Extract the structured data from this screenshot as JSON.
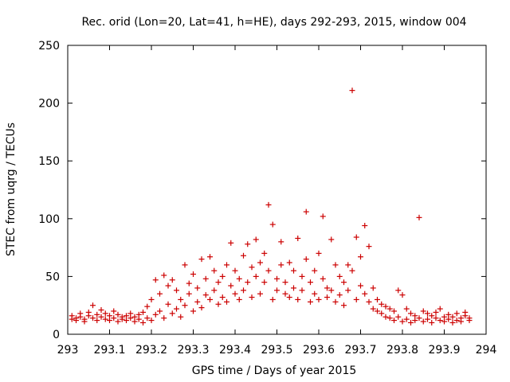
{
  "chart_data": {
    "type": "scatter",
    "title": "Rec. orid (Lon=20, Lat=41, h=HE), days 292-293, 2015, window 004",
    "xlabel": "GPS time / Days of year 2015",
    "ylabel": "STEC from uqrg / TECUs",
    "xlim": [
      293,
      294
    ],
    "ylim": [
      0,
      250
    ],
    "xticks": [
      "293",
      "293.1",
      "293.2",
      "293.3",
      "293.4",
      "293.5",
      "293.6",
      "293.7",
      "293.8",
      "293.9",
      "294"
    ],
    "yticks": [
      "0",
      "50",
      "100",
      "150",
      "200",
      "250"
    ],
    "grid": false,
    "marker": "plus",
    "color": "#cc0000",
    "series": [
      {
        "points": [
          [
            293.01,
            13
          ],
          [
            293.01,
            16
          ],
          [
            293.02,
            14
          ],
          [
            293.02,
            12
          ],
          [
            293.03,
            18
          ],
          [
            293.03,
            15
          ],
          [
            293.04,
            13
          ],
          [
            293.04,
            11
          ],
          [
            293.05,
            16
          ],
          [
            293.05,
            19
          ],
          [
            293.06,
            14
          ],
          [
            293.06,
            25
          ],
          [
            293.07,
            12
          ],
          [
            293.07,
            17
          ],
          [
            293.08,
            15
          ],
          [
            293.08,
            21
          ],
          [
            293.09,
            13
          ],
          [
            293.09,
            18
          ],
          [
            293.1,
            16
          ],
          [
            293.1,
            12
          ],
          [
            293.11,
            14
          ],
          [
            293.11,
            20
          ],
          [
            293.12,
            11
          ],
          [
            293.12,
            17
          ],
          [
            293.13,
            15
          ],
          [
            293.13,
            13
          ],
          [
            293.14,
            12
          ],
          [
            293.14,
            16
          ],
          [
            293.15,
            14
          ],
          [
            293.15,
            18
          ],
          [
            293.16,
            11
          ],
          [
            293.16,
            15
          ],
          [
            293.17,
            13
          ],
          [
            293.17,
            17
          ],
          [
            293.18,
            10
          ],
          [
            293.18,
            19
          ],
          [
            293.19,
            14
          ],
          [
            293.19,
            24
          ],
          [
            293.2,
            12
          ],
          [
            293.2,
            30
          ],
          [
            293.21,
            47
          ],
          [
            293.21,
            17
          ],
          [
            293.22,
            20
          ],
          [
            293.22,
            35
          ],
          [
            293.23,
            51
          ],
          [
            293.23,
            14
          ],
          [
            293.24,
            26
          ],
          [
            293.24,
            42
          ],
          [
            293.25,
            18
          ],
          [
            293.25,
            47
          ],
          [
            293.26,
            22
          ],
          [
            293.26,
            38
          ],
          [
            293.27,
            30
          ],
          [
            293.27,
            15
          ],
          [
            293.28,
            60
          ],
          [
            293.28,
            25
          ],
          [
            293.29,
            35
          ],
          [
            293.29,
            44
          ],
          [
            293.3,
            20
          ],
          [
            293.3,
            52
          ],
          [
            293.31,
            28
          ],
          [
            293.31,
            40
          ],
          [
            293.32,
            65
          ],
          [
            293.32,
            23
          ],
          [
            293.33,
            34
          ],
          [
            293.33,
            48
          ],
          [
            293.34,
            67
          ],
          [
            293.34,
            30
          ],
          [
            293.35,
            38
          ],
          [
            293.35,
            55
          ],
          [
            293.36,
            26
          ],
          [
            293.36,
            45
          ],
          [
            293.37,
            32
          ],
          [
            293.37,
            50
          ],
          [
            293.38,
            60
          ],
          [
            293.38,
            28
          ],
          [
            293.39,
            79
          ],
          [
            293.39,
            42
          ],
          [
            293.4,
            35
          ],
          [
            293.4,
            55
          ],
          [
            293.41,
            30
          ],
          [
            293.41,
            48
          ],
          [
            293.42,
            68
          ],
          [
            293.42,
            38
          ],
          [
            293.43,
            78
          ],
          [
            293.43,
            45
          ],
          [
            293.44,
            58
          ],
          [
            293.44,
            32
          ],
          [
            293.45,
            82
          ],
          [
            293.45,
            50
          ],
          [
            293.46,
            62
          ],
          [
            293.46,
            35
          ],
          [
            293.47,
            70
          ],
          [
            293.47,
            45
          ],
          [
            293.48,
            112
          ],
          [
            293.48,
            55
          ],
          [
            293.49,
            30
          ],
          [
            293.49,
            95
          ],
          [
            293.5,
            48
          ],
          [
            293.5,
            38
          ],
          [
            293.51,
            80
          ],
          [
            293.51,
            60
          ],
          [
            293.52,
            35
          ],
          [
            293.52,
            45
          ],
          [
            293.53,
            62
          ],
          [
            293.53,
            32
          ],
          [
            293.54,
            55
          ],
          [
            293.54,
            40
          ],
          [
            293.55,
            83
          ],
          [
            293.55,
            30
          ],
          [
            293.56,
            50
          ],
          [
            293.56,
            38
          ],
          [
            293.57,
            106
          ],
          [
            293.57,
            65
          ],
          [
            293.58,
            45
          ],
          [
            293.58,
            28
          ],
          [
            293.59,
            55
          ],
          [
            293.59,
            35
          ],
          [
            293.6,
            70
          ],
          [
            293.6,
            30
          ],
          [
            293.61,
            102
          ],
          [
            293.61,
            48
          ],
          [
            293.62,
            40
          ],
          [
            293.62,
            32
          ],
          [
            293.63,
            82
          ],
          [
            293.63,
            38
          ],
          [
            293.64,
            60
          ],
          [
            293.64,
            28
          ],
          [
            293.65,
            50
          ],
          [
            293.65,
            34
          ],
          [
            293.66,
            45
          ],
          [
            293.66,
            25
          ],
          [
            293.67,
            60
          ],
          [
            293.67,
            38
          ],
          [
            293.68,
            211
          ],
          [
            293.68,
            55
          ],
          [
            293.69,
            84
          ],
          [
            293.69,
            30
          ],
          [
            293.7,
            67
          ],
          [
            293.7,
            42
          ],
          [
            293.71,
            94
          ],
          [
            293.71,
            35
          ],
          [
            293.72,
            76
          ],
          [
            293.72,
            28
          ],
          [
            293.73,
            40
          ],
          [
            293.73,
            22
          ],
          [
            293.74,
            30
          ],
          [
            293.74,
            20
          ],
          [
            293.75,
            26
          ],
          [
            293.75,
            18
          ],
          [
            293.76,
            24
          ],
          [
            293.76,
            15
          ],
          [
            293.77,
            22
          ],
          [
            293.77,
            14
          ],
          [
            293.78,
            20
          ],
          [
            293.78,
            12
          ],
          [
            293.79,
            38
          ],
          [
            293.79,
            15
          ],
          [
            293.8,
            34
          ],
          [
            293.8,
            11
          ],
          [
            293.81,
            22
          ],
          [
            293.81,
            13
          ],
          [
            293.82,
            18
          ],
          [
            293.82,
            10
          ],
          [
            293.83,
            16
          ],
          [
            293.83,
            12
          ],
          [
            293.84,
            101
          ],
          [
            293.84,
            14
          ],
          [
            293.85,
            20
          ],
          [
            293.85,
            11
          ],
          [
            293.86,
            18
          ],
          [
            293.86,
            13
          ],
          [
            293.87,
            16
          ],
          [
            293.87,
            10
          ],
          [
            293.88,
            14
          ],
          [
            293.88,
            19
          ],
          [
            293.89,
            12
          ],
          [
            293.89,
            22
          ],
          [
            293.9,
            15
          ],
          [
            293.9,
            11
          ],
          [
            293.91,
            13
          ],
          [
            293.91,
            17
          ],
          [
            293.92,
            10
          ],
          [
            293.92,
            15
          ],
          [
            293.93,
            12
          ],
          [
            293.93,
            18
          ],
          [
            293.94,
            14
          ],
          [
            293.94,
            11
          ],
          [
            293.95,
            16
          ],
          [
            293.95,
            19
          ],
          [
            293.96,
            12
          ],
          [
            293.96,
            14
          ]
        ]
      }
    ]
  }
}
